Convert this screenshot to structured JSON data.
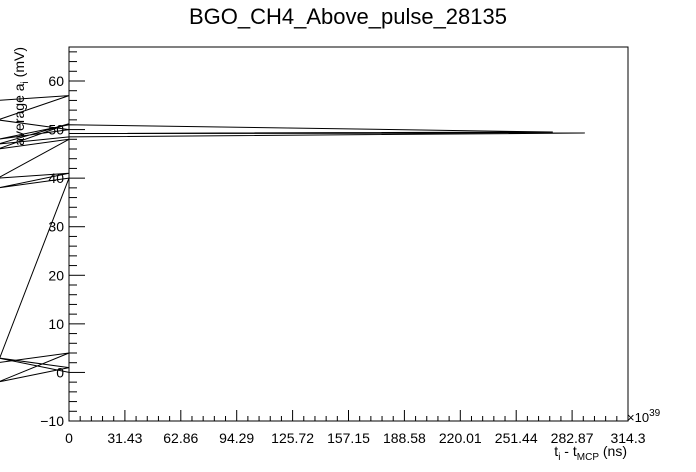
{
  "chart_data": {
    "type": "line",
    "title": "BGO_CH4_Above_pulse_28135",
    "xlabel": {
      "main": "t",
      "sub1": "i",
      "mid": " - t",
      "sub2": "MCP",
      "unit": " (ns)"
    },
    "ylabel": {
      "main": "average a",
      "sub": "i",
      "unit": " (mV)"
    },
    "x_multiplier": "×10",
    "x_exponent": "39",
    "xlim": [
      0,
      314.3
    ],
    "ylim": [
      -10,
      67
    ],
    "x_ticks": [
      "0",
      "31.43",
      "62.86",
      "94.29",
      "125.72",
      "157.15",
      "188.58",
      "220.01",
      "251.44",
      "282.87",
      "314.3"
    ],
    "y_ticks": [
      -10,
      0,
      10,
      20,
      30,
      40,
      50,
      60
    ],
    "y_tick_labels": [
      "−10",
      "0",
      "10",
      "20",
      "30",
      "40",
      "50",
      "60"
    ],
    "series": [
      {
        "values": [
          [
            -40,
            56
          ],
          [
            0,
            57
          ],
          [
            -40,
            52
          ],
          [
            0,
            50
          ],
          [
            -40,
            48
          ],
          [
            0,
            51
          ],
          [
            272,
            49.5
          ],
          [
            0,
            49.2
          ],
          [
            290,
            49.3
          ],
          [
            0,
            48.5
          ],
          [
            -40,
            47
          ],
          [
            0,
            51.2
          ],
          [
            -40,
            46
          ],
          [
            0,
            48
          ],
          [
            -40,
            40
          ],
          [
            0,
            41
          ],
          [
            -40,
            38
          ],
          [
            0,
            40
          ],
          [
            -40,
            2
          ],
          [
            0,
            4
          ],
          [
            -40,
            -2
          ],
          [
            0,
            1
          ],
          [
            -40,
            3
          ],
          [
            0,
            0
          ]
        ]
      }
    ]
  }
}
